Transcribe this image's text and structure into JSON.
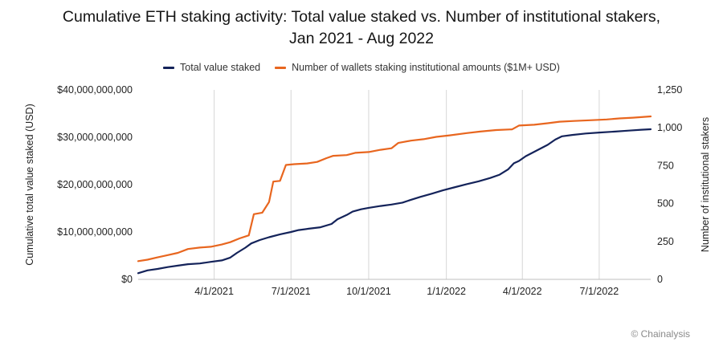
{
  "chart_data": {
    "type": "line",
    "title": "Cumulative ETH staking activity: Total value staked vs. Number of institutional stakers,",
    "subtitle": "Jan 2021 - Aug 2022",
    "ylabel_left": "Cumulative total value staked (USD)",
    "ylabel_right": "Number of institutional stakers",
    "x_tick_labels": [
      "4/1/2021",
      "7/1/2021",
      "10/1/2021",
      "1/1/2022",
      "4/1/2022",
      "7/1/2022"
    ],
    "x_ticks": [
      "2021-04-01",
      "2021-07-01",
      "2021-10-01",
      "2022-01-01",
      "2022-04-01",
      "2022-07-01"
    ],
    "xlim": [
      "2021-01-01",
      "2022-08-31"
    ],
    "y_left_ticks": [
      "$0",
      "$10,000,000,000",
      "$20,000,000,000",
      "$30,000,000,000",
      "$40,000,000,000"
    ],
    "y_left_lim": [
      0,
      40000000000
    ],
    "y_right_ticks": [
      "0",
      "250",
      "500",
      "750",
      "1,000",
      "1,250"
    ],
    "y_right_lim": [
      0,
      1250
    ],
    "grid": "vertical lines at x ticks",
    "legend_position": "top-center",
    "series": [
      {
        "name": "Total value staked",
        "axis": "left",
        "color": "#14235a",
        "points": [
          [
            "2021-01-01",
            1300000000
          ],
          [
            "2021-01-12",
            1900000000
          ],
          [
            "2021-01-24",
            2200000000
          ],
          [
            "2021-02-05",
            2600000000
          ],
          [
            "2021-02-17",
            2900000000
          ],
          [
            "2021-03-01",
            3200000000
          ],
          [
            "2021-03-15",
            3350000000
          ],
          [
            "2021-03-28",
            3700000000
          ],
          [
            "2021-04-10",
            4000000000
          ],
          [
            "2021-04-20",
            4600000000
          ],
          [
            "2021-04-28",
            5600000000
          ],
          [
            "2021-05-08",
            6700000000
          ],
          [
            "2021-05-15",
            7600000000
          ],
          [
            "2021-05-25",
            8300000000
          ],
          [
            "2021-06-05",
            8900000000
          ],
          [
            "2021-06-18",
            9500000000
          ],
          [
            "2021-07-01",
            10000000000
          ],
          [
            "2021-07-10",
            10400000000
          ],
          [
            "2021-07-22",
            10700000000
          ],
          [
            "2021-08-05",
            11000000000
          ],
          [
            "2021-08-18",
            11700000000
          ],
          [
            "2021-08-25",
            12700000000
          ],
          [
            "2021-09-05",
            13600000000
          ],
          [
            "2021-09-12",
            14300000000
          ],
          [
            "2021-09-22",
            14800000000
          ],
          [
            "2021-10-01",
            15100000000
          ],
          [
            "2021-10-15",
            15500000000
          ],
          [
            "2021-10-28",
            15800000000
          ],
          [
            "2021-11-10",
            16200000000
          ],
          [
            "2021-11-20",
            16800000000
          ],
          [
            "2021-12-01",
            17400000000
          ],
          [
            "2021-12-15",
            18100000000
          ],
          [
            "2021-12-28",
            18800000000
          ],
          [
            "2022-01-10",
            19400000000
          ],
          [
            "2022-01-25",
            20100000000
          ],
          [
            "2022-02-08",
            20700000000
          ],
          [
            "2022-02-22",
            21400000000
          ],
          [
            "2022-03-05",
            22100000000
          ],
          [
            "2022-03-15",
            23200000000
          ],
          [
            "2022-03-22",
            24500000000
          ],
          [
            "2022-03-28",
            25000000000
          ],
          [
            "2022-04-05",
            26000000000
          ],
          [
            "2022-04-18",
            27200000000
          ],
          [
            "2022-05-01",
            28400000000
          ],
          [
            "2022-05-10",
            29500000000
          ],
          [
            "2022-05-18",
            30200000000
          ],
          [
            "2022-05-30",
            30500000000
          ],
          [
            "2022-06-15",
            30800000000
          ],
          [
            "2022-07-01",
            31000000000
          ],
          [
            "2022-07-20",
            31200000000
          ],
          [
            "2022-08-05",
            31400000000
          ],
          [
            "2022-08-20",
            31600000000
          ],
          [
            "2022-08-31",
            31700000000
          ]
        ]
      },
      {
        "name": "Number of wallets staking institutional amounts ($1M+ USD)",
        "axis": "right",
        "color": "#e8661f",
        "points": [
          [
            "2021-01-01",
            120
          ],
          [
            "2021-01-12",
            130
          ],
          [
            "2021-01-24",
            145
          ],
          [
            "2021-02-05",
            160
          ],
          [
            "2021-02-17",
            175
          ],
          [
            "2021-03-01",
            200
          ],
          [
            "2021-03-15",
            210
          ],
          [
            "2021-03-28",
            215
          ],
          [
            "2021-04-10",
            230
          ],
          [
            "2021-04-20",
            245
          ],
          [
            "2021-05-01",
            270
          ],
          [
            "2021-05-12",
            290
          ],
          [
            "2021-05-18",
            430
          ],
          [
            "2021-05-28",
            440
          ],
          [
            "2021-06-05",
            510
          ],
          [
            "2021-06-10",
            645
          ],
          [
            "2021-06-18",
            650
          ],
          [
            "2021-06-25",
            755
          ],
          [
            "2021-07-05",
            760
          ],
          [
            "2021-07-20",
            765
          ],
          [
            "2021-08-01",
            775
          ],
          [
            "2021-08-12",
            800
          ],
          [
            "2021-08-20",
            815
          ],
          [
            "2021-09-05",
            820
          ],
          [
            "2021-09-15",
            835
          ],
          [
            "2021-10-01",
            840
          ],
          [
            "2021-10-15",
            855
          ],
          [
            "2021-10-28",
            865
          ],
          [
            "2021-11-05",
            900
          ],
          [
            "2021-11-20",
            915
          ],
          [
            "2021-12-05",
            925
          ],
          [
            "2021-12-20",
            940
          ],
          [
            "2022-01-05",
            950
          ],
          [
            "2022-01-25",
            965
          ],
          [
            "2022-02-10",
            975
          ],
          [
            "2022-03-01",
            985
          ],
          [
            "2022-03-20",
            990
          ],
          [
            "2022-03-28",
            1015
          ],
          [
            "2022-04-15",
            1020
          ],
          [
            "2022-05-01",
            1030
          ],
          [
            "2022-05-15",
            1040
          ],
          [
            "2022-06-01",
            1045
          ],
          [
            "2022-06-20",
            1050
          ],
          [
            "2022-07-10",
            1055
          ],
          [
            "2022-07-25",
            1062
          ],
          [
            "2022-08-10",
            1067
          ],
          [
            "2022-08-31",
            1075
          ]
        ]
      }
    ]
  },
  "watermark": "© Chainalysis"
}
